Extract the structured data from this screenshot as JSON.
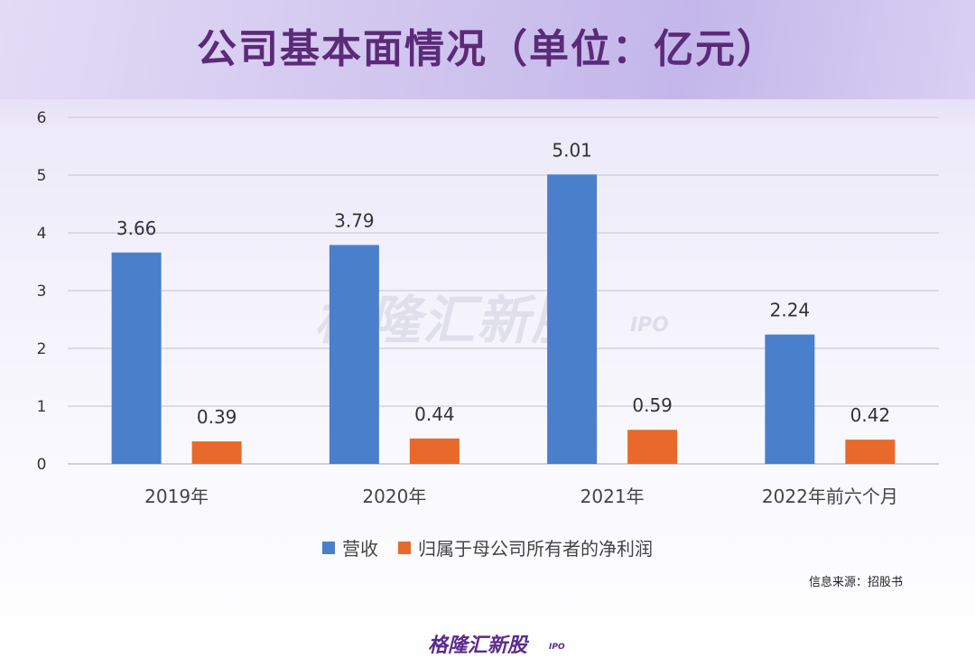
{
  "page": {
    "title": "公司基本面情况（单位：亿元）",
    "source": "信息来源：招股书",
    "watermark": "格隆汇新股",
    "watermark_sub": "IPO",
    "logo_text": "格隆汇新股",
    "logo_sub": "IPO"
  },
  "colors": {
    "revenue": "#4a7fcc",
    "profit": "#e8692a",
    "title": "#5b2a78",
    "grid": "#d4d4dc"
  },
  "chart_data": {
    "type": "bar",
    "categories": [
      "2019年",
      "2020年",
      "2021年",
      "2022年前六个月"
    ],
    "series": [
      {
        "name": "营收",
        "values": [
          3.66,
          3.79,
          5.01,
          2.24
        ],
        "labels": [
          "3.66",
          "3.79",
          "5.01",
          "2.24"
        ]
      },
      {
        "name": "归属于母公司所有者的净利润",
        "values": [
          0.39,
          0.44,
          0.59,
          0.42
        ],
        "labels": [
          "0.39",
          "0.44",
          "0.59",
          "0.42"
        ]
      }
    ],
    "yticks": [
      "0",
      "1",
      "2",
      "3",
      "4",
      "5",
      "6"
    ],
    "ylim": [
      0,
      6
    ],
    "grid": true,
    "legend_position": "bottom"
  }
}
